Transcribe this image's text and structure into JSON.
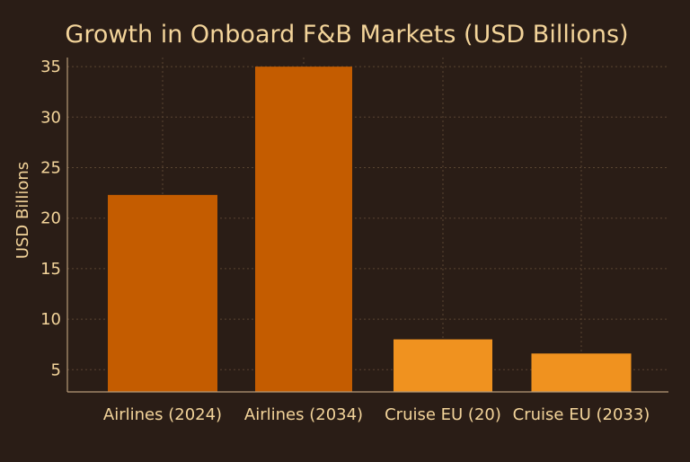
{
  "chart_data": {
    "type": "bar",
    "title": "Growth in Onboard F&B Markets (USD Billions)",
    "xlabel": "",
    "ylabel": "USD Billions",
    "categories": [
      "Airlines (2024)",
      "Airlines (2034)",
      "Cruise EU (20)",
      "Cruise EU (2033)"
    ],
    "values": [
      22.3,
      35.0,
      8.0,
      6.6
    ],
    "ylim": [
      2.8,
      35.9
    ],
    "yticks": [
      5,
      10,
      15,
      20,
      25,
      30,
      35
    ],
    "bar_colors": [
      "#c45c00",
      "#c45c00",
      "#f0921f",
      "#f0921f"
    ],
    "grid": true,
    "legend": "none"
  },
  "colors": {
    "background": "#2a1d16",
    "text": "#f3d49a",
    "grid": "#5a4532",
    "axis": "#b79a78"
  }
}
